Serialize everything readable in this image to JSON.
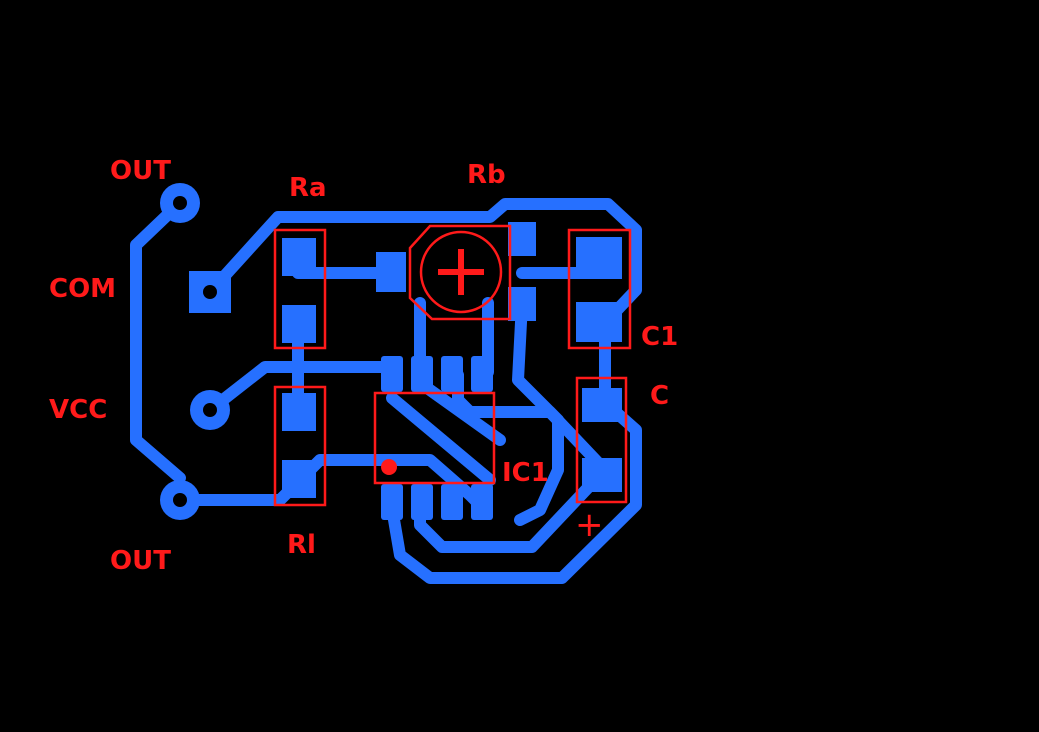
{
  "colors": {
    "background": "#000000",
    "copper": "#2670ff",
    "silkscreen": "#ff1a1a"
  },
  "labels": {
    "out_top": "OUT",
    "com": "COM",
    "vcc": "VCC",
    "out_bottom": "OUT",
    "ra": "Ra",
    "rb": "Rb",
    "c1": "C1",
    "c": "C",
    "ic1": "IC1",
    "rl": "Rl",
    "polarity": "+"
  }
}
